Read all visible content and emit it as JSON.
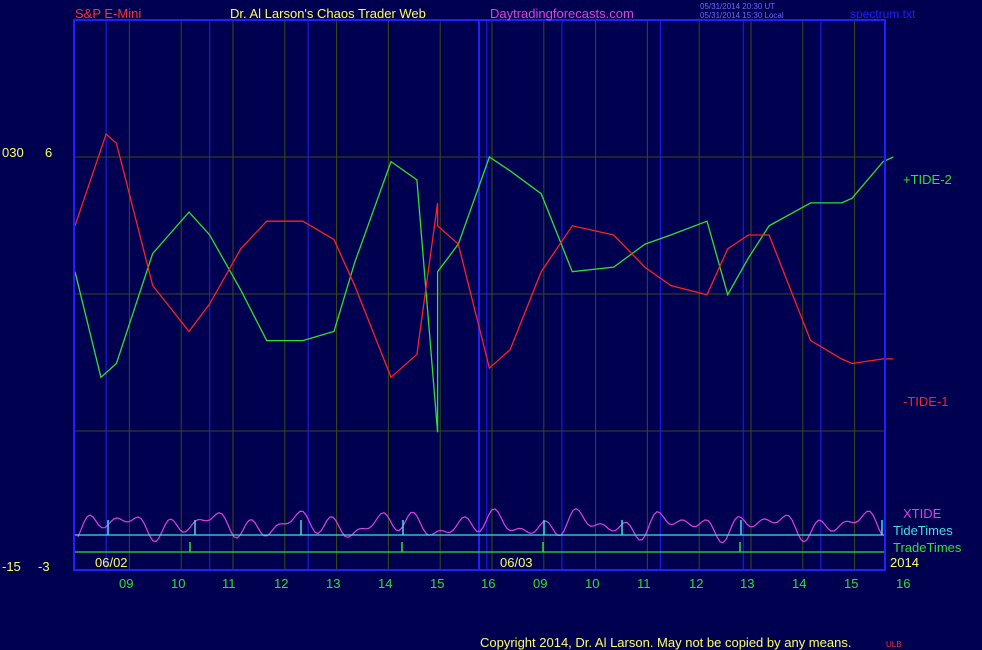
{
  "header": {
    "symbol": "S&P E-Mini",
    "title": "Dr. Al Larson's Chaos Trader Web",
    "site": "Daytradingforecasts.com",
    "stamp_utc": "05/31/2014 20:30 UT",
    "stamp_local": "05/31/2014 15:30 Local",
    "file": "spectrum.txt"
  },
  "left_axis": {
    "top_label_a": "030",
    "top_label_b": "6",
    "bottom_label_a": "-15",
    "bottom_label_b": "-3"
  },
  "date_labels": {
    "day1": "06/02",
    "day2": "06/03",
    "year": "2014"
  },
  "footer": {
    "copyright": "Copyright 2014, Dr. Al Larson. May not be copied by any means.",
    "mark": "ULB"
  },
  "colors": {
    "background": "#000050",
    "frame": "#1f1fff",
    "grid": "#3d4a10",
    "tide1": "#ff2020",
    "tide2": "#30e030",
    "xtide": "#e040e0",
    "tidetimes": "#40e0e0",
    "tradetimes": "#30e030",
    "header_red": "#ff3030",
    "header_yellow": "#ffff60",
    "header_magenta": "#e040e0",
    "stamp_blue": "#6a6aff"
  },
  "chart_data": {
    "type": "line",
    "x_ticks": [
      "09",
      "10",
      "11",
      "12",
      "13",
      "14",
      "15",
      "16",
      "09",
      "10",
      "11",
      "12",
      "13",
      "14",
      "15",
      "16"
    ],
    "y_range": [
      -3,
      6
    ],
    "series": [
      {
        "name": "+TIDE-2",
        "x": [
          0,
          0.5,
          0.8,
          1.5,
          2.2,
          2.6,
          3.2,
          3.7,
          4.4,
          5.0,
          5.4,
          6.1,
          6.6,
          7.0,
          7.0,
          7.4,
          8.0,
          8.4,
          9.0,
          9.6,
          10.4,
          11.0,
          11.5,
          12.2,
          12.6,
          13.0,
          13.4,
          14.2,
          14.8,
          15.0,
          15.6,
          15.8
        ],
        "y": [
          3.5,
          1.2,
          1.5,
          3.9,
          4.8,
          4.3,
          3.1,
          2.0,
          2.0,
          2.2,
          3.7,
          5.9,
          5.5,
          0.0,
          3.5,
          4.1,
          6.0,
          5.7,
          5.2,
          3.5,
          3.6,
          4.1,
          4.3,
          4.6,
          3.0,
          3.8,
          4.5,
          5.0,
          5.0,
          5.1,
          5.9,
          6.0
        ]
      },
      {
        "name": "-TIDE-1",
        "x": [
          0,
          0.6,
          0.8,
          1.5,
          2.2,
          2.6,
          3.2,
          3.7,
          4.4,
          5.0,
          5.4,
          6.1,
          6.6,
          7.0,
          7.0,
          7.4,
          8.0,
          8.4,
          9.0,
          9.6,
          10.4,
          11.0,
          11.5,
          12.2,
          12.6,
          13.0,
          13.4,
          14.2,
          14.8,
          15.0,
          15.6,
          15.8
        ],
        "y": [
          4.5,
          6.5,
          6.3,
          3.2,
          2.2,
          2.8,
          4.0,
          4.6,
          4.6,
          4.2,
          3.2,
          1.2,
          1.7,
          5.0,
          4.5,
          4.1,
          1.4,
          1.8,
          3.5,
          4.5,
          4.3,
          3.6,
          3.2,
          3.0,
          4.0,
          4.3,
          4.3,
          2.0,
          1.6,
          1.5,
          1.6,
          1.6
        ]
      }
    ],
    "legend": [
      "+TIDE-2",
      "-TIDE-1",
      "XTIDE",
      "TideTimes",
      "TradeTimes"
    ],
    "grid": true
  }
}
